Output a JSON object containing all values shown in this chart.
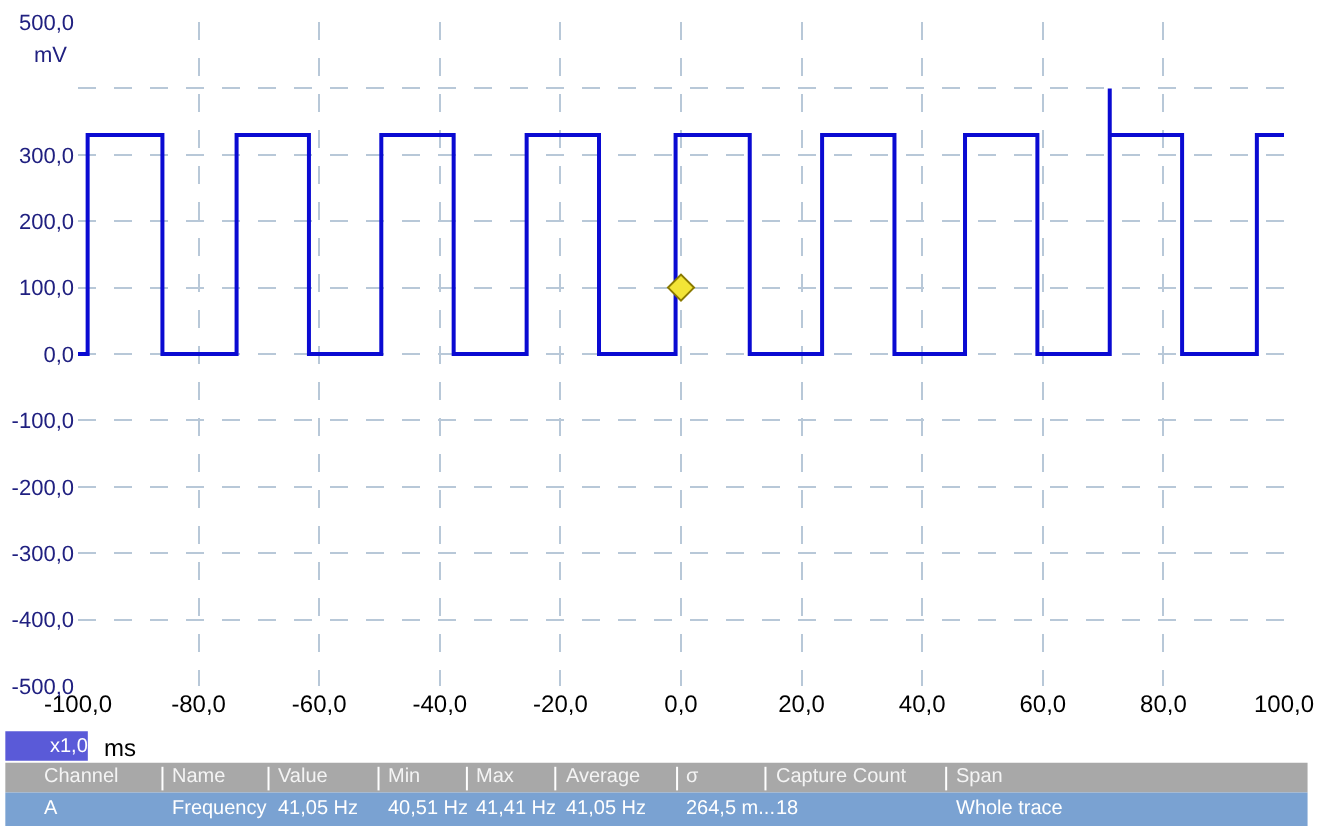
{
  "chart_data": {
    "type": "line",
    "xlabel": "ms",
    "ylabel": "mV",
    "xlim": [
      -100,
      100
    ],
    "ylim": [
      -500,
      500
    ],
    "xticks": [
      {
        "value": -100,
        "label": "-100,0"
      },
      {
        "value": -80,
        "label": "-80,0"
      },
      {
        "value": -60,
        "label": "-60,0"
      },
      {
        "value": -40,
        "label": "-40,0"
      },
      {
        "value": -20,
        "label": "-20,0"
      },
      {
        "value": 0,
        "label": "0,0"
      },
      {
        "value": 20,
        "label": "20,0"
      },
      {
        "value": 40,
        "label": "40,0"
      },
      {
        "value": 60,
        "label": "60,0"
      },
      {
        "value": 80,
        "label": "80,0"
      },
      {
        "value": 100,
        "label": "100,0"
      }
    ],
    "yticks": [
      {
        "value": -500,
        "label": "-500,0"
      },
      {
        "value": -400,
        "label": "-400,0"
      },
      {
        "value": -300,
        "label": "-300,0"
      },
      {
        "value": -200,
        "label": "-200,0"
      },
      {
        "value": -100,
        "label": "-100,0"
      },
      {
        "value": 0,
        "label": "0,0"
      },
      {
        "value": 100,
        "label": "100,0"
      },
      {
        "value": 200,
        "label": "200,0"
      },
      {
        "value": 300,
        "label": "300,0"
      },
      {
        "value": 400,
        "label": null
      },
      {
        "value": 500,
        "label": "500,0"
      }
    ],
    "grid": true,
    "legend": false,
    "line_style": "solid",
    "series": [
      {
        "color": "#0a0ad2",
        "x": [
          -100,
          -98.4,
          -98.4,
          -86.0,
          -86.0,
          -73.7,
          -73.7,
          -61.7,
          -61.7,
          -49.7,
          -49.7,
          -37.7,
          -37.7,
          -25.6,
          -25.6,
          -13.6,
          -13.6,
          -0.9,
          -0.9,
          11.4,
          11.4,
          23.4,
          23.4,
          35.4,
          35.4,
          47.1,
          47.1,
          59.1,
          59.1,
          71.1,
          71.1,
          71.1,
          83.1,
          83.1,
          95.5,
          95.5,
          100
        ],
        "values": [
          0,
          0,
          330,
          330,
          0,
          0,
          330,
          330,
          0,
          0,
          330,
          330,
          0,
          0,
          330,
          330,
          0,
          0,
          330,
          330,
          0,
          0,
          330,
          330,
          0,
          0,
          330,
          330,
          0,
          0,
          400,
          330,
          330,
          0,
          0,
          330,
          330
        ]
      },
      {
        "type": "scatter",
        "marker": "diamond",
        "color": "#f2e436",
        "x": [
          0
        ],
        "values": [
          100
        ]
      }
    ],
    "annotations": [
      "x1,0",
      "Channel",
      "Name",
      "Value",
      "Min",
      "Max",
      "Average",
      "σ",
      "Capture Count",
      "Span",
      "A",
      "Frequency",
      "41,05 Hz",
      "40,51 Hz",
      "41,41 Hz",
      "41,05 Hz",
      "264,5 m...",
      "18",
      "Whole trace"
    ]
  }
}
